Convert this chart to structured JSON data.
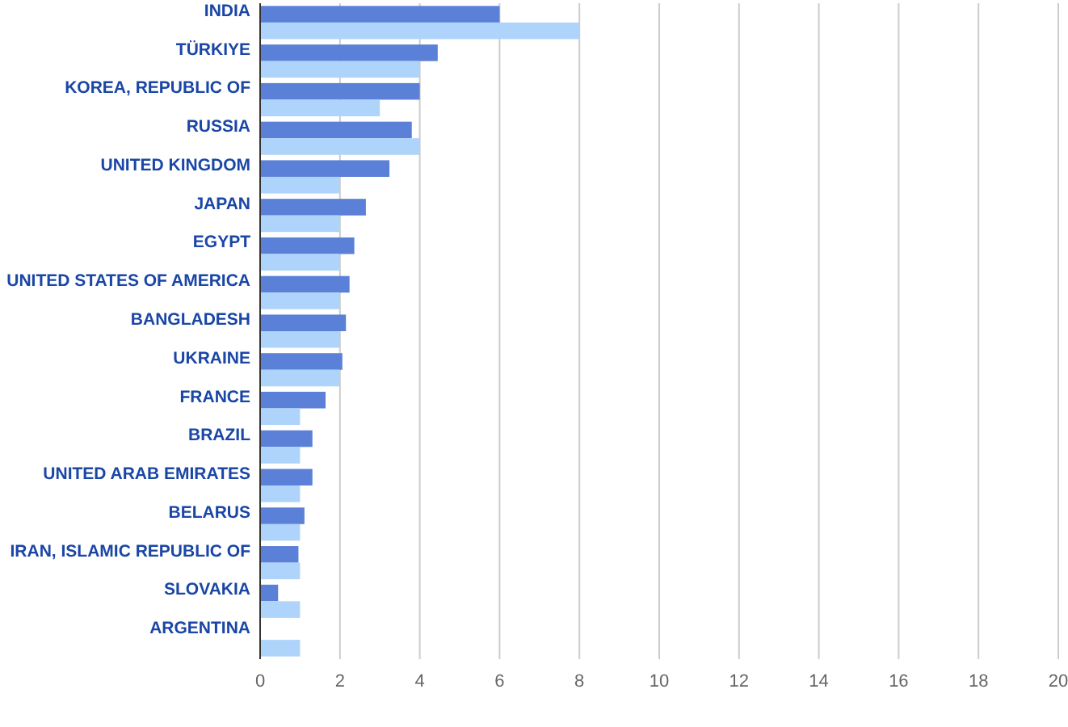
{
  "chart_data": {
    "type": "bar",
    "orientation": "horizontal",
    "categories": [
      "INDIA",
      "TÜRKIYE",
      "KOREA, REPUBLIC OF",
      "RUSSIA",
      "UNITED KINGDOM",
      "JAPAN",
      "EGYPT",
      "UNITED STATES OF AMERICA",
      "BANGLADESH",
      "UKRAINE",
      "FRANCE",
      "BRAZIL",
      "UNITED ARAB EMIRATES",
      "BELARUS",
      "IRAN, ISLAMIC REPUBLIC OF",
      "SLOVAKIA",
      "ARGENTINA"
    ],
    "series": [
      {
        "color": "#5a80d8",
        "values": [
          6.0,
          4.45,
          4.0,
          3.8,
          3.24,
          2.65,
          2.36,
          2.24,
          2.15,
          2.06,
          1.64,
          1.31,
          1.31,
          1.11,
          0.96,
          0.45,
          0
        ]
      },
      {
        "color": "#aed4fb",
        "values": [
          8,
          4,
          3,
          4,
          2,
          2,
          2,
          2,
          2,
          2,
          1,
          1,
          1,
          1,
          1,
          1,
          1
        ]
      }
    ],
    "xlim": [
      0,
      20
    ],
    "xticks": [
      0,
      2,
      4,
      6,
      8,
      10,
      12,
      14,
      16,
      18,
      20
    ],
    "grid": "x"
  }
}
